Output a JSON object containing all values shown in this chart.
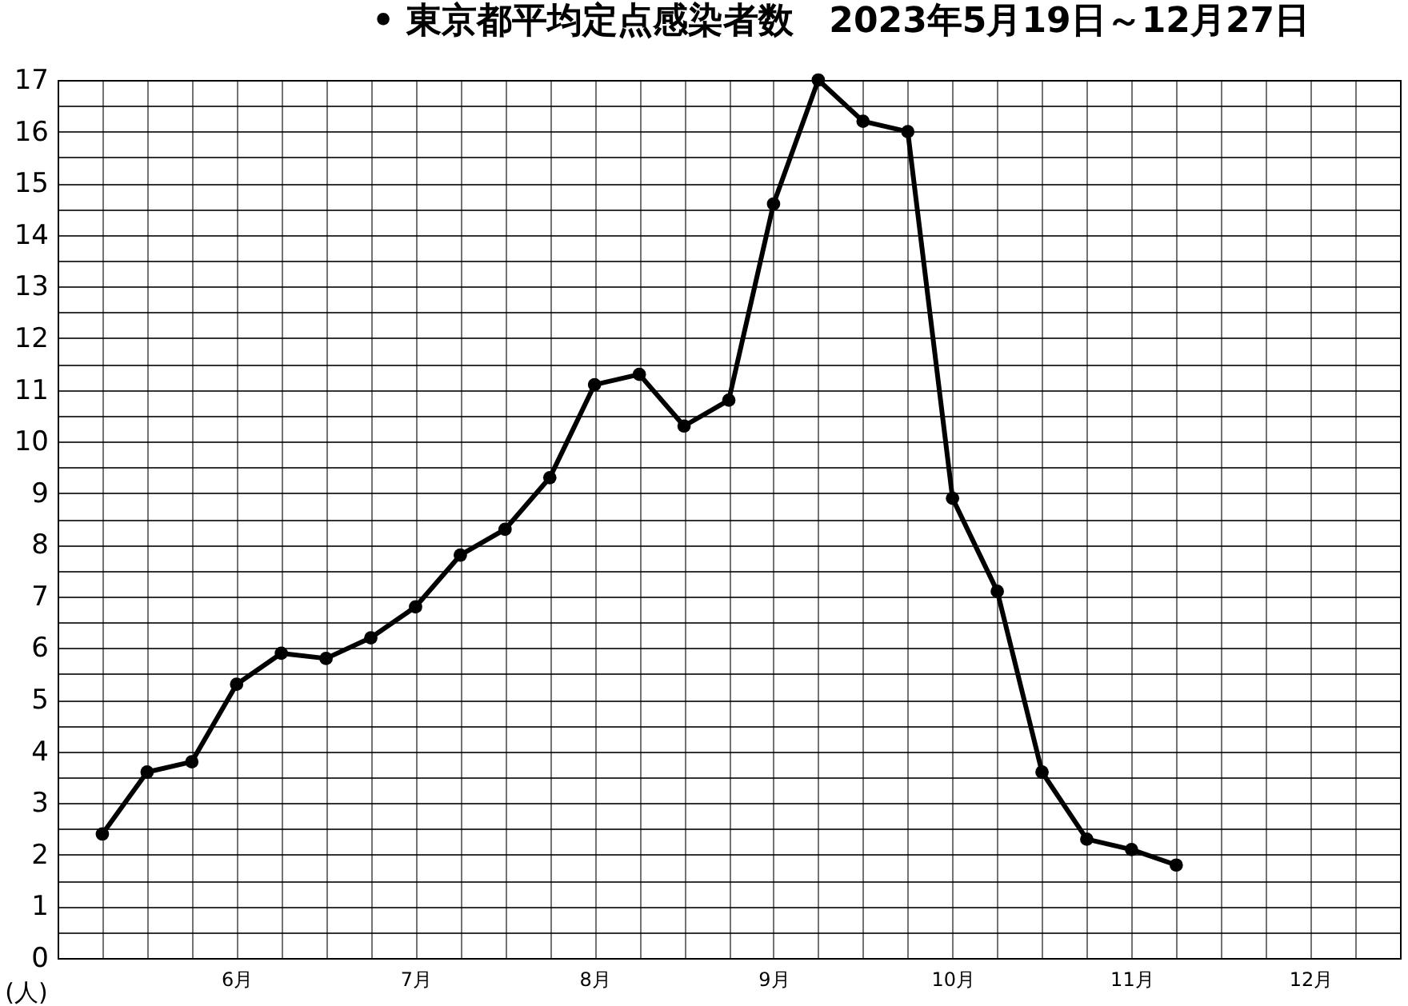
{
  "chart_data": {
    "type": "line",
    "title": "• 東京都平均定点感染者数　2023年5月19日～12月27日",
    "ylabel": "(人)",
    "categories": [
      null,
      null,
      null,
      "6月",
      null,
      null,
      null,
      "7月",
      null,
      null,
      null,
      "8月",
      null,
      null,
      null,
      "9月",
      null,
      null,
      null,
      "10月",
      null,
      null,
      null,
      "11月",
      null,
      null,
      null,
      "12月",
      null
    ],
    "series": [
      {
        "color": "#000000",
        "values": [
          2.4,
          3.6,
          3.8,
          5.3,
          5.9,
          5.8,
          6.2,
          6.8,
          7.8,
          8.3,
          9.3,
          11.1,
          11.3,
          10.3,
          10.8,
          14.6,
          17.0,
          16.2,
          16.0,
          8.9,
          7.1,
          3.6,
          2.3,
          2.1,
          1.8,
          null,
          null,
          null,
          null
        ]
      }
    ],
    "ylim": [
      0,
      17
    ],
    "yticks": [
      0,
      {
        "value": 0.5,
        "label": null
      },
      1,
      {
        "value": 1.5,
        "label": null
      },
      2,
      {
        "value": 2.5,
        "label": null
      },
      3,
      {
        "value": 3.5,
        "label": null
      },
      4,
      {
        "value": 4.5,
        "label": null
      },
      5,
      {
        "value": 5.5,
        "label": null
      },
      6,
      {
        "value": 6.5,
        "label": null
      },
      7,
      {
        "value": 7.5,
        "label": null
      },
      8,
      {
        "value": 8.5,
        "label": null
      },
      9,
      {
        "value": 9.5,
        "label": null
      },
      10,
      {
        "value": 10.5,
        "label": null
      },
      11,
      {
        "value": 11.5,
        "label": null
      },
      12,
      {
        "value": 12.5,
        "label": null
      },
      13,
      {
        "value": 13.5,
        "label": null
      },
      14,
      {
        "value": 14.5,
        "label": null
      },
      15,
      {
        "value": 15.5,
        "label": null
      },
      16,
      {
        "value": 16.5,
        "label": null
      },
      17
    ],
    "grid": true,
    "marker": "circle",
    "line_style": "solid"
  }
}
